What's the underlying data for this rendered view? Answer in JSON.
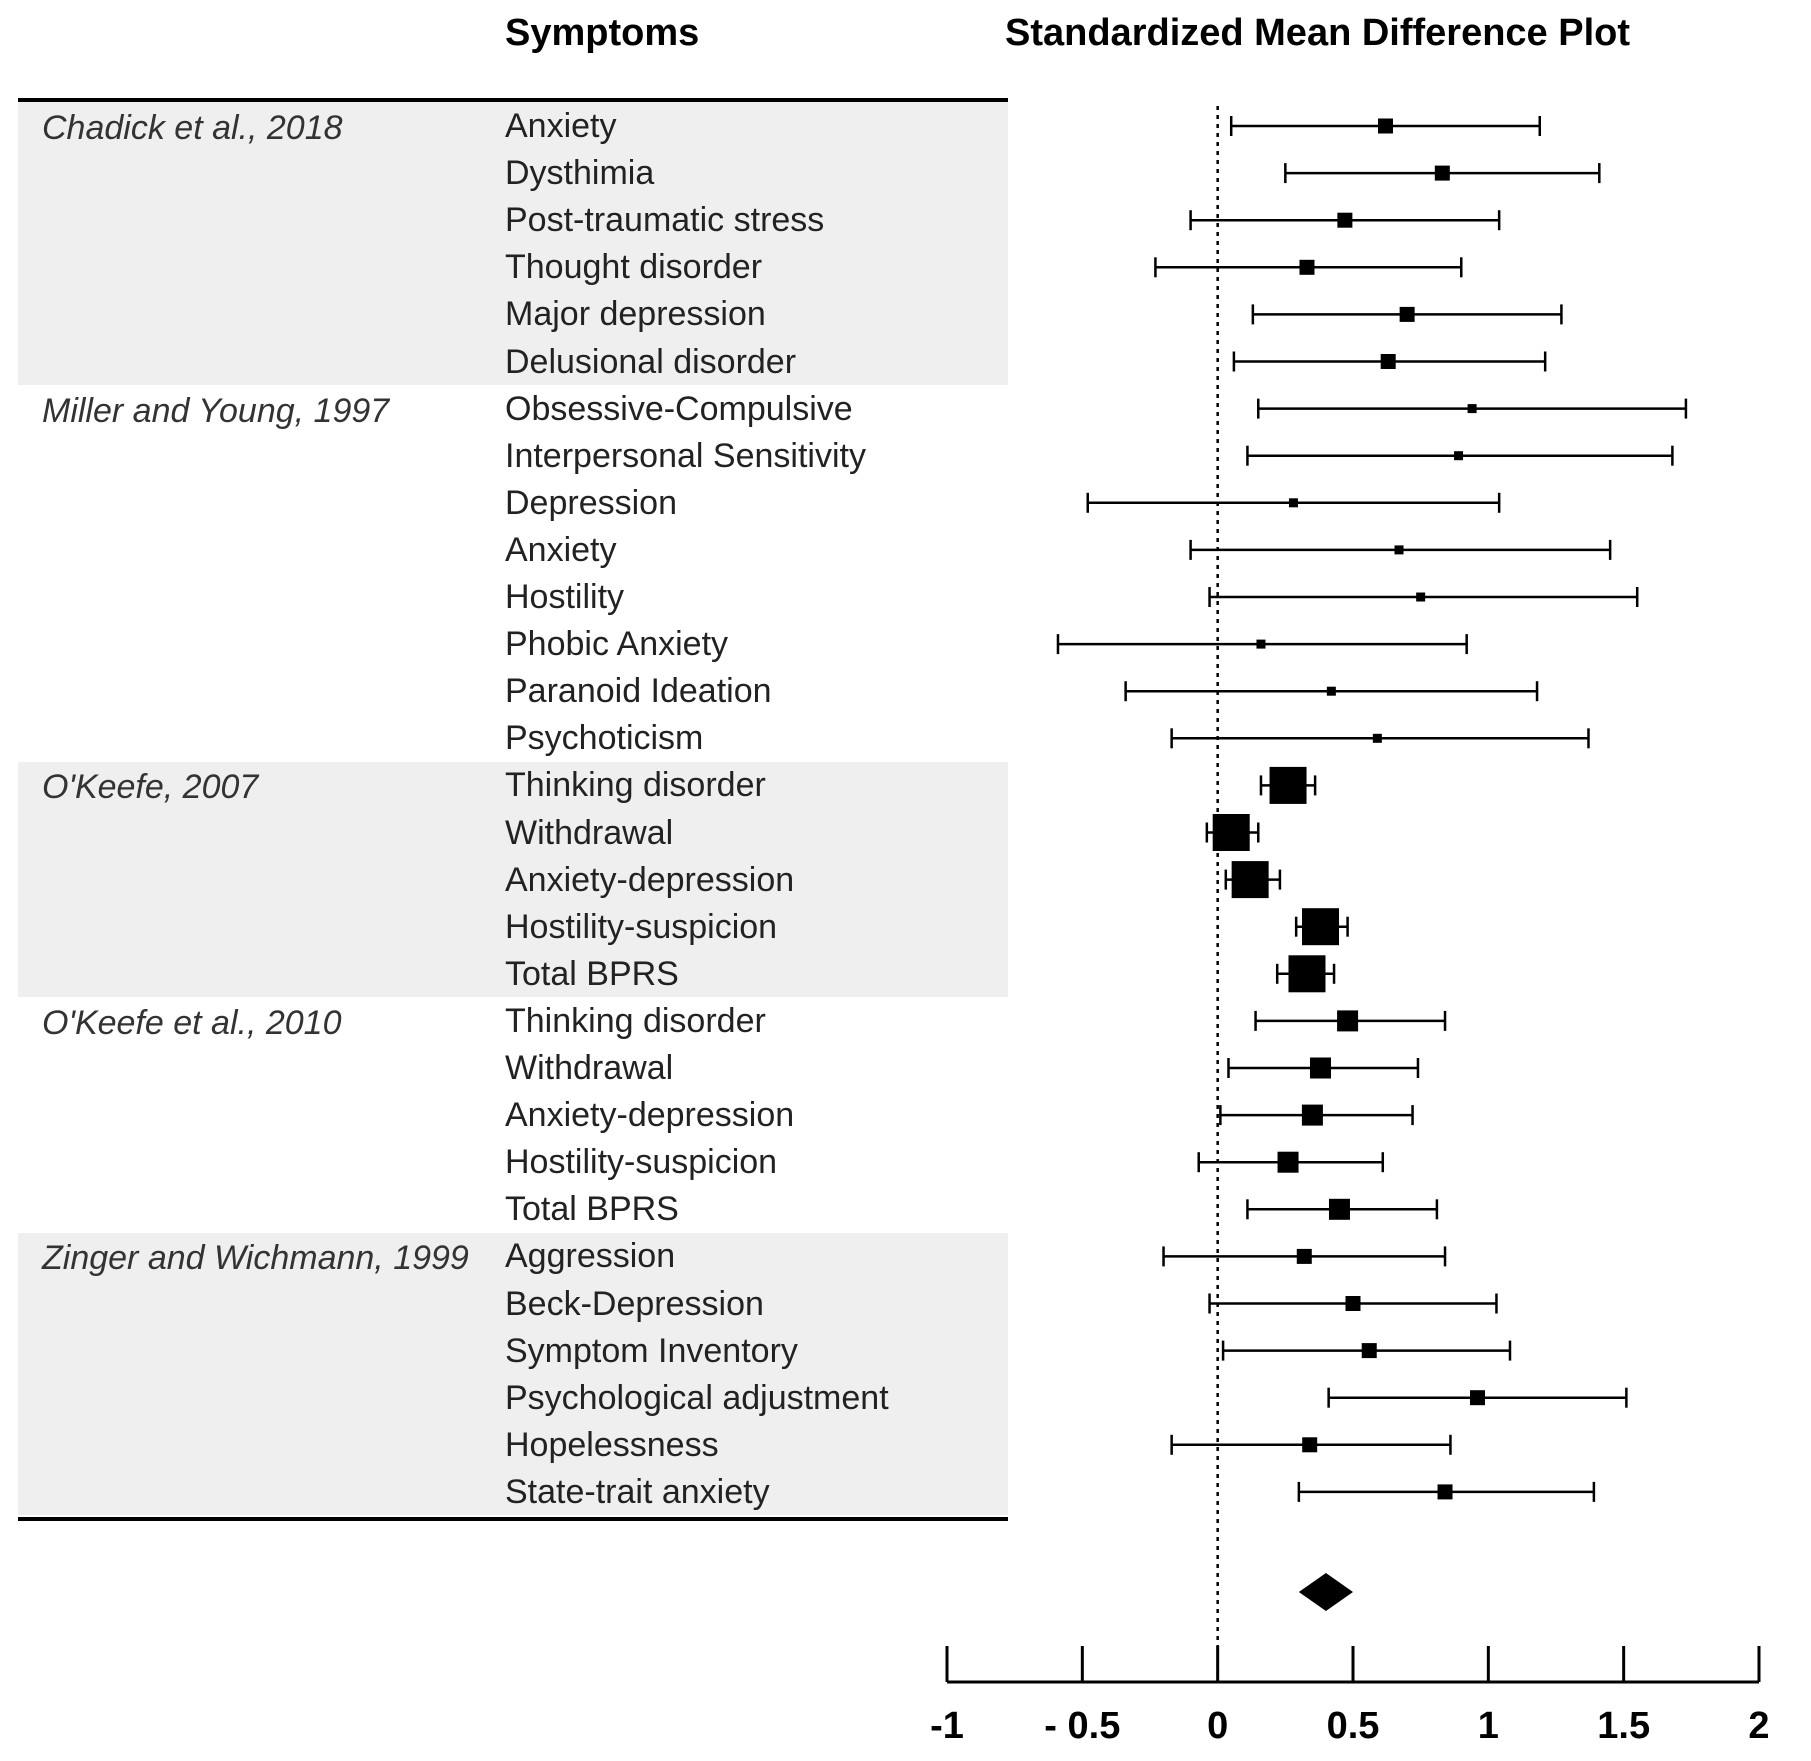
{
  "headers": {
    "symptoms": "Symptoms",
    "plot_title": "Standardized Mean Difference Plot"
  },
  "studies": [
    {
      "label": "Chadick et al., 2018",
      "shaded": true,
      "rows": [
        {
          "symptom": "Anxiety",
          "est": 0.62,
          "lo": 0.05,
          "hi": 1.19,
          "weight": "small"
        },
        {
          "symptom": "Dysthimia",
          "est": 0.83,
          "lo": 0.25,
          "hi": 1.41,
          "weight": "small"
        },
        {
          "symptom": "Post-traumatic stress",
          "est": 0.47,
          "lo": -0.1,
          "hi": 1.04,
          "weight": "small"
        },
        {
          "symptom": "Thought disorder",
          "est": 0.33,
          "lo": -0.23,
          "hi": 0.9,
          "weight": "small"
        },
        {
          "symptom": "Major depression",
          "est": 0.7,
          "lo": 0.13,
          "hi": 1.27,
          "weight": "small"
        },
        {
          "symptom": "Delusional disorder",
          "est": 0.63,
          "lo": 0.06,
          "hi": 1.21,
          "weight": "small"
        }
      ]
    },
    {
      "label": "Miller and Young, 1997",
      "shaded": false,
      "rows": [
        {
          "symptom": "Obsessive-Compulsive",
          "est": 0.94,
          "lo": 0.15,
          "hi": 1.73,
          "weight": "tiny"
        },
        {
          "symptom": "Interpersonal Sensitivity",
          "est": 0.89,
          "lo": 0.11,
          "hi": 1.68,
          "weight": "tiny"
        },
        {
          "symptom": "Depression",
          "est": 0.28,
          "lo": -0.48,
          "hi": 1.04,
          "weight": "tiny"
        },
        {
          "symptom": "Anxiety",
          "est": 0.67,
          "lo": -0.1,
          "hi": 1.45,
          "weight": "tiny"
        },
        {
          "symptom": "Hostility",
          "est": 0.75,
          "lo": -0.03,
          "hi": 1.55,
          "weight": "tiny"
        },
        {
          "symptom": "Phobic Anxiety",
          "est": 0.16,
          "lo": -0.59,
          "hi": 0.92,
          "weight": "tiny"
        },
        {
          "symptom": "Paranoid Ideation",
          "est": 0.42,
          "lo": -0.34,
          "hi": 1.18,
          "weight": "tiny"
        },
        {
          "symptom": "Psychoticism",
          "est": 0.59,
          "lo": -0.17,
          "hi": 1.37,
          "weight": "tiny"
        }
      ]
    },
    {
      "label": "O'Keefe, 2007",
      "shaded": true,
      "rows": [
        {
          "symptom": "Thinking disorder",
          "est": 0.26,
          "lo": 0.16,
          "hi": 0.36,
          "weight": "large"
        },
        {
          "symptom": "Withdrawal",
          "est": 0.05,
          "lo": -0.04,
          "hi": 0.15,
          "weight": "large"
        },
        {
          "symptom": "Anxiety-depression",
          "est": 0.12,
          "lo": 0.03,
          "hi": 0.23,
          "weight": "large"
        },
        {
          "symptom": "Hostility-suspicion",
          "est": 0.38,
          "lo": 0.29,
          "hi": 0.48,
          "weight": "large"
        },
        {
          "symptom": "Total BPRS",
          "est": 0.33,
          "lo": 0.22,
          "hi": 0.43,
          "weight": "large"
        }
      ]
    },
    {
      "label": "O'Keefe et al., 2010",
      "shaded": false,
      "rows": [
        {
          "symptom": "Thinking disorder",
          "est": 0.48,
          "lo": 0.14,
          "hi": 0.84,
          "weight": "medium"
        },
        {
          "symptom": "Withdrawal",
          "est": 0.38,
          "lo": 0.04,
          "hi": 0.74,
          "weight": "medium"
        },
        {
          "symptom": "Anxiety-depression",
          "est": 0.35,
          "lo": 0.01,
          "hi": 0.72,
          "weight": "medium"
        },
        {
          "symptom": "Hostility-suspicion",
          "est": 0.26,
          "lo": -0.07,
          "hi": 0.61,
          "weight": "medium"
        },
        {
          "symptom": "Total BPRS",
          "est": 0.45,
          "lo": 0.11,
          "hi": 0.81,
          "weight": "medium"
        }
      ]
    },
    {
      "label": "Zinger and Wichmann, 1999",
      "shaded": true,
      "rows": [
        {
          "symptom": "Aggression",
          "est": 0.32,
          "lo": -0.2,
          "hi": 0.84,
          "weight": "small"
        },
        {
          "symptom": "Beck-Depression",
          "est": 0.5,
          "lo": -0.03,
          "hi": 1.03,
          "weight": "small"
        },
        {
          "symptom": "Symptom Inventory",
          "est": 0.56,
          "lo": 0.02,
          "hi": 1.08,
          "weight": "small"
        },
        {
          "symptom": "Psychological adjustment",
          "est": 0.96,
          "lo": 0.41,
          "hi": 1.51,
          "weight": "small"
        },
        {
          "symptom": "Hopelessness",
          "est": 0.34,
          "lo": -0.17,
          "hi": 0.86,
          "weight": "small"
        },
        {
          "symptom": "State-trait anxiety",
          "est": 0.84,
          "lo": 0.3,
          "hi": 1.39,
          "weight": "small"
        }
      ]
    }
  ],
  "chart_data": {
    "type": "scatter",
    "subtype": "forest-plot",
    "title": "Standardized Mean Difference Plot",
    "xlim": [
      -1,
      2
    ],
    "x_ticks": [
      -1,
      -0.5,
      0,
      0.5,
      1,
      1.5,
      2
    ],
    "x_tick_labels": [
      "-1",
      "- 0.5",
      "0",
      "0.5",
      "1",
      "1.5",
      "2"
    ],
    "reference_line": 0,
    "pooled": {
      "est": 0.4,
      "lo": 0.3,
      "hi": 0.5
    },
    "grid": false
  }
}
